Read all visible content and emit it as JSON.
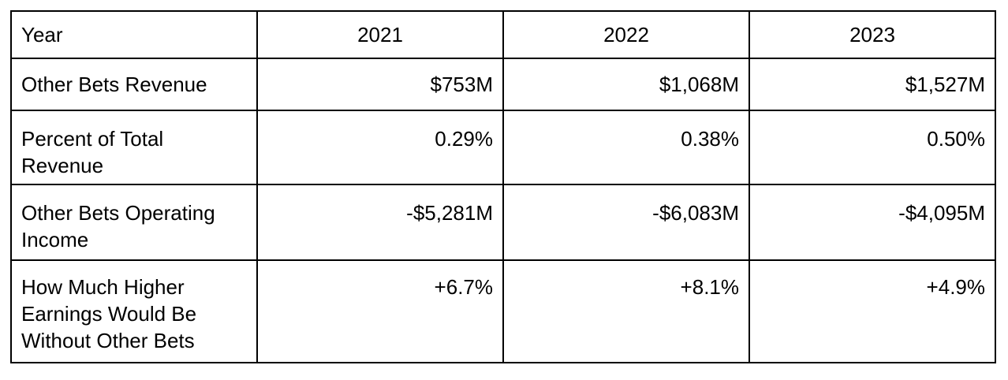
{
  "table": {
    "header": {
      "label": "Year",
      "years": [
        "2021",
        "2022",
        "2023"
      ]
    },
    "rows": [
      {
        "label": "Other Bets Revenue",
        "values": [
          "$753M",
          "$1,068M",
          "$1,527M"
        ]
      },
      {
        "label": "Percent of Total Revenue",
        "values": [
          "0.29%",
          "0.38%",
          "0.50%"
        ]
      },
      {
        "label": "Other Bets Operating Income",
        "values": [
          "-$5,281M",
          "-$6,083M",
          "-$4,095M"
        ]
      },
      {
        "label": "How Much Higher Earnings Would Be Without Other Bets",
        "values": [
          "+6.7%",
          "+8.1%",
          "+4.9%"
        ]
      }
    ]
  }
}
